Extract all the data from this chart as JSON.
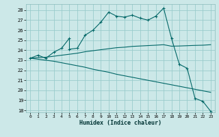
{
  "xlabel": "Humidex (Indice chaleur)",
  "bg_color": "#cce8e8",
  "grid_color": "#99cccc",
  "line_color": "#006666",
  "xlim": [
    -0.5,
    23.5
  ],
  "ylim": [
    17.8,
    28.6
  ],
  "yticks": [
    18,
    19,
    20,
    21,
    22,
    23,
    24,
    25,
    26,
    27,
    28
  ],
  "xticks": [
    0,
    1,
    2,
    3,
    4,
    5,
    6,
    7,
    8,
    9,
    10,
    11,
    12,
    13,
    14,
    15,
    16,
    17,
    18,
    19,
    20,
    21,
    22,
    23
  ],
  "curve1_x": [
    0,
    1,
    2,
    3,
    4,
    5,
    5,
    6,
    7,
    8,
    9,
    10,
    11,
    12,
    13,
    14,
    15,
    16,
    17,
    18,
    19,
    20,
    21,
    22,
    23
  ],
  "curve1_y": [
    23.2,
    23.5,
    23.2,
    23.8,
    24.2,
    25.2,
    24.1,
    24.2,
    25.5,
    26.0,
    26.8,
    27.8,
    27.4,
    27.3,
    27.5,
    27.2,
    27.0,
    27.4,
    28.2,
    25.2,
    22.6,
    22.2,
    19.2,
    18.9,
    17.9
  ],
  "curve2_x": [
    0,
    1,
    2,
    3,
    4,
    5,
    6,
    7,
    8,
    9,
    10,
    11,
    12,
    13,
    14,
    15,
    16,
    17,
    18,
    19,
    20,
    21,
    22,
    23
  ],
  "curve2_y": [
    23.2,
    23.25,
    23.3,
    23.4,
    23.5,
    23.6,
    23.7,
    23.85,
    23.95,
    24.05,
    24.15,
    24.25,
    24.3,
    24.38,
    24.42,
    24.46,
    24.5,
    24.55,
    24.4,
    24.42,
    24.45,
    24.48,
    24.5,
    24.55
  ],
  "curve3_x": [
    0,
    1,
    2,
    3,
    4,
    5,
    6,
    7,
    8,
    9,
    10,
    11,
    12,
    13,
    14,
    15,
    16,
    17,
    18,
    19,
    20,
    21,
    22,
    23
  ],
  "curve3_y": [
    23.2,
    23.1,
    23.0,
    22.9,
    22.75,
    22.6,
    22.45,
    22.3,
    22.1,
    21.95,
    21.8,
    21.6,
    21.45,
    21.3,
    21.15,
    21.0,
    20.85,
    20.7,
    20.55,
    20.4,
    20.25,
    20.1,
    19.95,
    19.8
  ]
}
